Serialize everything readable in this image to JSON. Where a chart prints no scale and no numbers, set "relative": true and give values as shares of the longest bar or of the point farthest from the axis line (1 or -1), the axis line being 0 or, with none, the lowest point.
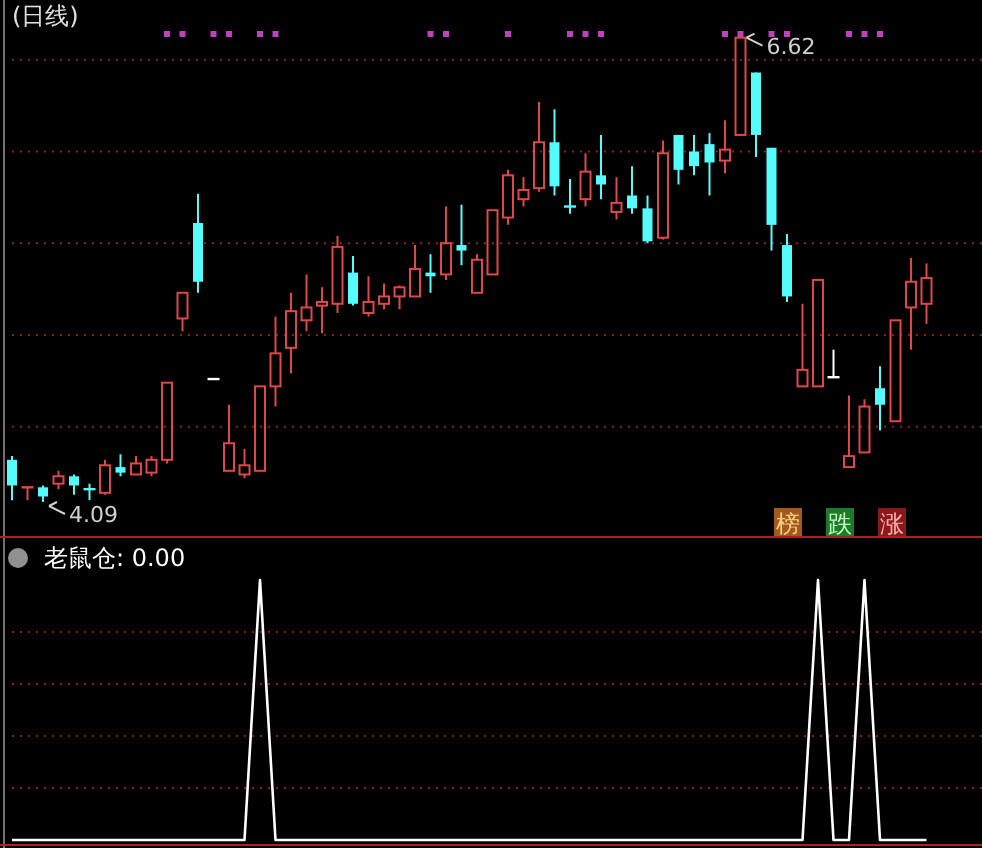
{
  "chart_data": [
    {
      "type": "candlestick",
      "title": "(日线)",
      "grid": "y",
      "yticks": [
        {
          "value": 4.5,
          "label": null
        },
        {
          "value": 5.0,
          "label": null
        },
        {
          "value": 5.5,
          "label": null
        },
        {
          "value": 6.0,
          "label": null
        },
        {
          "value": 6.5,
          "label": null
        }
      ],
      "categories": [
        null,
        null,
        null,
        null,
        null,
        null,
        null,
        null,
        null,
        null,
        null,
        null,
        null,
        null,
        null,
        null,
        null,
        null,
        null,
        null,
        null,
        null,
        null,
        null,
        null,
        null,
        null,
        null,
        null,
        null,
        null,
        null,
        null,
        null,
        null,
        null,
        null,
        null,
        null,
        null,
        null,
        null,
        null,
        null,
        null,
        null,
        null,
        null,
        null,
        null,
        null,
        null,
        null,
        null,
        null,
        null,
        null,
        null,
        null,
        null
      ],
      "ohlc": [
        [
          4.32,
          4.34,
          4.1,
          4.18
        ],
        [
          4.17,
          4.17,
          4.1,
          4.17
        ],
        [
          4.17,
          4.18,
          4.09,
          4.12
        ],
        [
          4.19,
          4.26,
          4.16,
          4.23
        ],
        [
          4.23,
          4.24,
          4.13,
          4.18
        ],
        [
          4.16,
          4.19,
          4.1,
          4.16
        ],
        [
          4.14,
          4.32,
          4.13,
          4.29
        ],
        [
          4.28,
          4.35,
          4.23,
          4.25
        ],
        [
          4.24,
          4.34,
          4.24,
          4.3
        ],
        [
          4.25,
          4.34,
          4.23,
          4.32
        ],
        [
          4.32,
          4.74,
          4.3,
          4.74
        ],
        [
          5.09,
          5.23,
          5.02,
          5.23
        ],
        [
          5.61,
          5.77,
          5.23,
          5.29
        ],
        [
          4.76,
          4.76,
          4.76,
          4.76
        ],
        [
          4.26,
          4.62,
          4.26,
          4.41
        ],
        [
          4.24,
          4.38,
          4.22,
          4.29
        ],
        [
          4.26,
          4.72,
          4.26,
          4.72
        ],
        [
          4.72,
          5.1,
          4.61,
          4.9
        ],
        [
          4.93,
          5.23,
          4.79,
          5.13
        ],
        [
          5.08,
          5.33,
          5.02,
          5.15
        ],
        [
          5.16,
          5.26,
          5.01,
          5.18
        ],
        [
          5.17,
          5.54,
          5.12,
          5.48
        ],
        [
          5.34,
          5.43,
          5.16,
          5.17
        ],
        [
          5.12,
          5.32,
          5.1,
          5.18
        ],
        [
          5.17,
          5.28,
          5.14,
          5.21
        ],
        [
          5.21,
          5.27,
          5.14,
          5.26
        ],
        [
          5.21,
          5.49,
          5.21,
          5.36
        ],
        [
          5.34,
          5.44,
          5.23,
          5.32
        ],
        [
          5.33,
          5.7,
          5.3,
          5.5
        ],
        [
          5.49,
          5.71,
          5.38,
          5.46
        ],
        [
          5.23,
          5.44,
          5.23,
          5.41
        ],
        [
          5.33,
          5.68,
          5.33,
          5.68
        ],
        [
          5.64,
          5.9,
          5.6,
          5.87
        ],
        [
          5.74,
          5.86,
          5.7,
          5.79
        ],
        [
          5.8,
          6.27,
          5.78,
          6.05
        ],
        [
          6.05,
          6.23,
          5.76,
          5.81
        ],
        [
          5.7,
          5.85,
          5.66,
          5.7
        ],
        [
          5.74,
          5.99,
          5.7,
          5.89
        ],
        [
          5.87,
          6.09,
          5.74,
          5.82
        ],
        [
          5.67,
          5.86,
          5.63,
          5.72
        ],
        [
          5.76,
          5.92,
          5.66,
          5.69
        ],
        [
          5.69,
          5.76,
          5.5,
          5.51
        ],
        [
          5.53,
          6.06,
          5.52,
          5.99
        ],
        [
          6.09,
          6.09,
          5.82,
          5.9
        ],
        [
          6.0,
          6.09,
          5.87,
          5.92
        ],
        [
          6.04,
          6.1,
          5.76,
          5.94
        ],
        [
          5.95,
          6.17,
          5.88,
          6.01
        ],
        [
          6.09,
          6.62,
          6.09,
          6.62
        ],
        [
          6.43,
          6.43,
          5.97,
          6.09
        ],
        [
          6.02,
          6.02,
          5.46,
          5.6
        ],
        [
          5.49,
          5.55,
          5.18,
          5.21
        ],
        [
          4.72,
          5.17,
          4.72,
          4.81
        ],
        [
          4.72,
          5.3,
          4.72,
          5.3
        ],
        [
          4.77,
          4.92,
          4.77,
          4.77
        ],
        [
          4.28,
          4.67,
          4.28,
          4.34
        ],
        [
          4.36,
          4.65,
          4.36,
          4.61
        ],
        [
          4.71,
          4.83,
          4.48,
          4.62
        ],
        [
          4.53,
          5.08,
          4.53,
          5.08
        ],
        [
          5.15,
          5.42,
          4.92,
          5.29
        ],
        [
          5.17,
          5.39,
          5.06,
          5.31
        ]
      ],
      "colors": [
        "#54fcfc",
        "#e04848",
        "#54fcfc",
        "#e04848",
        "#54fcfc",
        "#54fcfc",
        "#e04848",
        "#54fcfc",
        "#e04848",
        "#e04848",
        "#e04848",
        "#e04848",
        "#54fcfc",
        "#ffffff",
        "#e04848",
        "#e04848",
        "#e04848",
        "#e04848",
        "#e04848",
        "#e04848",
        "#e04848",
        "#e04848",
        "#54fcfc",
        "#e04848",
        "#e04848",
        "#e04848",
        "#e04848",
        "#54fcfc",
        "#e04848",
        "#54fcfc",
        "#e04848",
        "#e04848",
        "#e04848",
        "#e04848",
        "#e04848",
        "#54fcfc",
        "#54fcfc",
        "#e04848",
        "#54fcfc",
        "#e04848",
        "#54fcfc",
        "#54fcfc",
        "#e04848",
        "#54fcfc",
        "#54fcfc",
        "#54fcfc",
        "#e04848",
        "#e04848",
        "#54fcfc",
        "#54fcfc",
        "#54fcfc",
        "#e04848",
        "#e04848",
        "#ffffff",
        "#e04848",
        "#e04848",
        "#54fcfc",
        "#e04848",
        "#e04848",
        "#e04848"
      ],
      "series": [
        {
          "type": "scatter",
          "color": "#c040c0",
          "marker": "square",
          "values": [
            null,
            null,
            null,
            null,
            null,
            null,
            null,
            null,
            null,
            null,
            6.64,
            6.64,
            null,
            6.64,
            6.64,
            null,
            6.64,
            6.64,
            null,
            null,
            null,
            null,
            null,
            null,
            null,
            null,
            null,
            6.64,
            6.64,
            null,
            null,
            null,
            6.64,
            null,
            null,
            null,
            6.64,
            6.64,
            6.64,
            null,
            null,
            null,
            null,
            null,
            null,
            null,
            6.64,
            6.64,
            null,
            6.64,
            6.64,
            null,
            null,
            null,
            6.64,
            6.64,
            6.64,
            null,
            null,
            null
          ]
        }
      ],
      "annotations": [
        {
          "text": "6.62",
          "y": 6.62
        },
        {
          "text": "4.09",
          "y": 4.09
        },
        "榜",
        "跌",
        "涨"
      ]
    },
    {
      "type": "line",
      "title": "老鼠仓: 0.00",
      "relative": true,
      "color": "#ffffff",
      "ref_lines": [
        {
          "axis": "y",
          "value": 0.2,
          "color": "#8a2020",
          "line_style": "dotted"
        },
        {
          "axis": "y",
          "value": 0.4,
          "color": "#8a2020",
          "line_style": "dotted"
        },
        {
          "axis": "y",
          "value": 0.6,
          "color": "#8a2020",
          "line_style": "dotted"
        },
        {
          "axis": "y",
          "value": 0.8,
          "color": "#8a2020",
          "line_style": "dotted"
        }
      ],
      "categories": [
        null,
        null,
        null,
        null,
        null,
        null,
        null,
        null,
        null,
        null,
        null,
        null,
        null,
        null,
        null,
        null,
        null,
        null,
        null,
        null,
        null,
        null,
        null,
        null,
        null,
        null,
        null,
        null,
        null,
        null,
        null,
        null,
        null,
        null,
        null,
        null,
        null,
        null,
        null,
        null,
        null,
        null,
        null,
        null,
        null,
        null,
        null,
        null,
        null,
        null,
        null,
        null,
        null,
        null,
        null,
        null,
        null,
        null,
        null,
        null
      ],
      "values": [
        0,
        0,
        0,
        0,
        0,
        0,
        0,
        0,
        0,
        0,
        0,
        0,
        0,
        0,
        0,
        0,
        1,
        0,
        0,
        0,
        0,
        0,
        0,
        0,
        0,
        0,
        0,
        0,
        0,
        0,
        0,
        0,
        0,
        0,
        0,
        0,
        0,
        0,
        0,
        0,
        0,
        0,
        0,
        0,
        0,
        0,
        0,
        0,
        0,
        0,
        0,
        0,
        1,
        0,
        0,
        1,
        0,
        0,
        0,
        0
      ]
    }
  ]
}
